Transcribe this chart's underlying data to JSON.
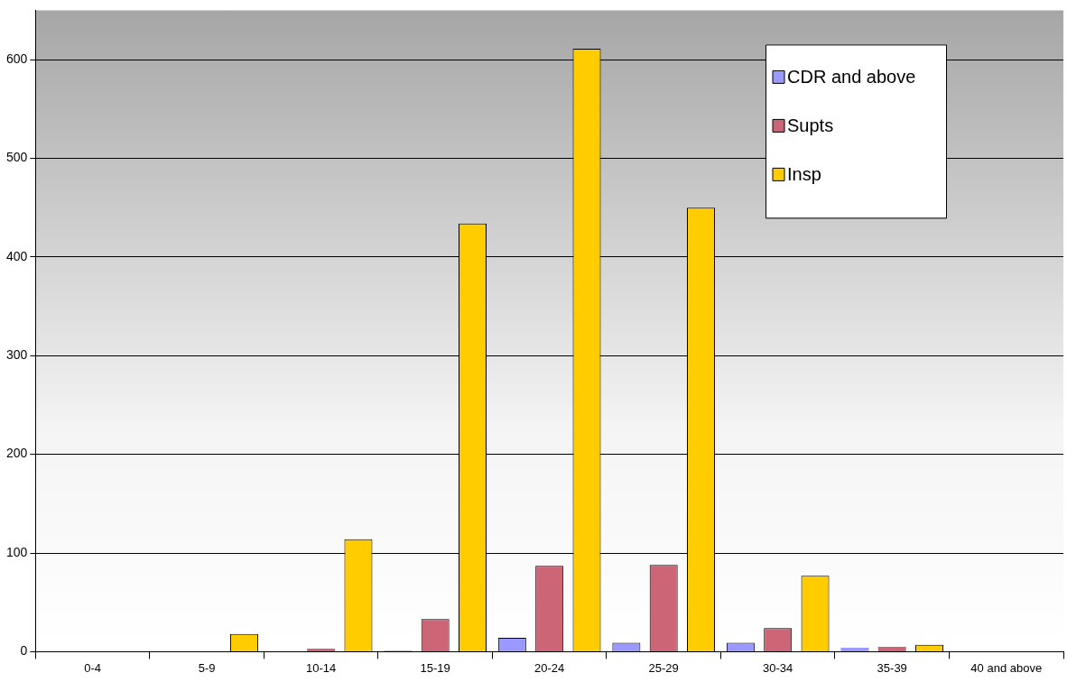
{
  "chart_data": {
    "type": "bar",
    "categories": [
      "0-4",
      "5-9",
      "10-14",
      "15-19",
      "20-24",
      "25-29",
      "30-34",
      "35-39",
      "40 and above"
    ],
    "series": [
      {
        "name": "CDR and above",
        "color": "#9999ff",
        "values": [
          0,
          0,
          0,
          1,
          14,
          9,
          9,
          4,
          0
        ]
      },
      {
        "name": "Supts",
        "color": "#cc6677",
        "values": [
          0,
          0,
          3,
          33,
          87,
          88,
          24,
          5,
          0
        ]
      },
      {
        "name": "Insp",
        "color": "#ffcc00",
        "values": [
          0,
          18,
          114,
          434,
          611,
          450,
          77,
          7,
          0
        ]
      }
    ],
    "ylim": [
      0,
      650
    ],
    "yticks": [
      0,
      100,
      200,
      300,
      400,
      500,
      600
    ],
    "grid": "y",
    "legend": "top right"
  }
}
